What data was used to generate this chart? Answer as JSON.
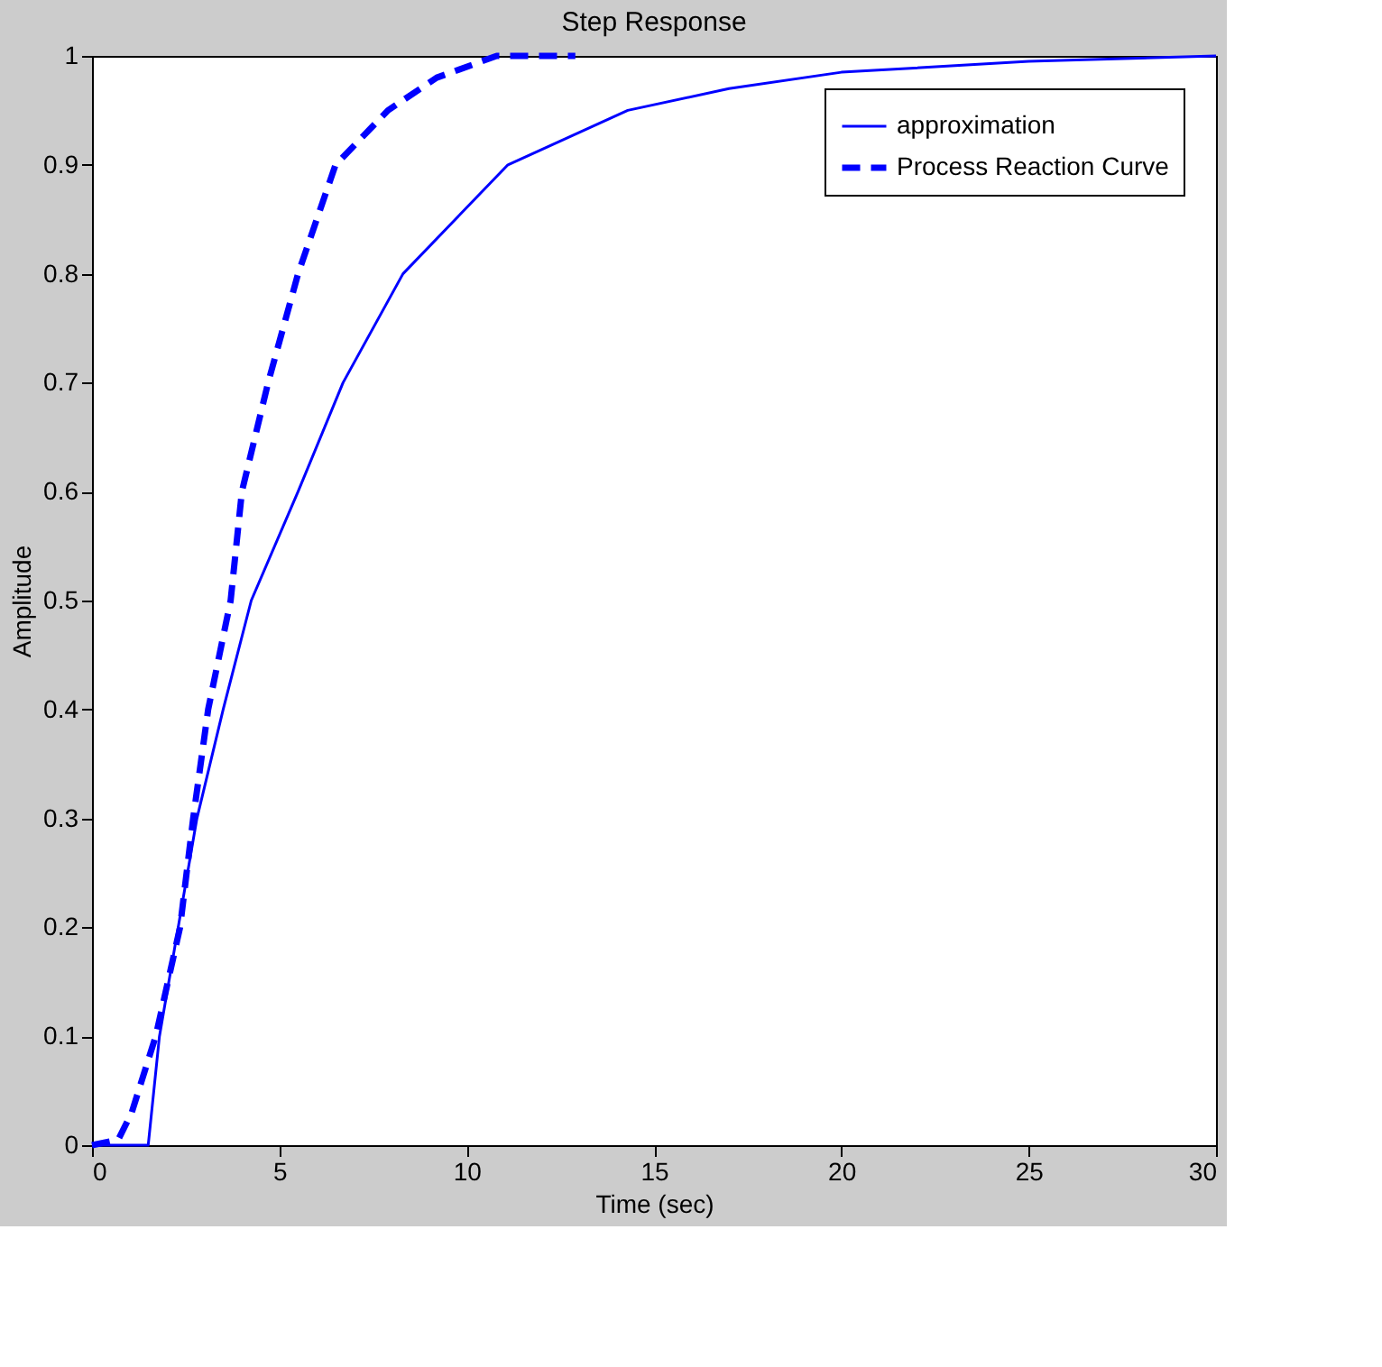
{
  "chart_data": {
    "type": "line",
    "title": "Step Response",
    "xlabel": "Time (sec)",
    "ylabel": "Amplitude",
    "xlim": [
      0,
      30
    ],
    "xticks": [
      0,
      5,
      10,
      15,
      20,
      25,
      30
    ],
    "ylim": [
      0,
      1
    ],
    "yticks": [
      0,
      0.1,
      0.2,
      0.3,
      0.4,
      0.5,
      0.6,
      0.7,
      0.8,
      0.9,
      1
    ],
    "grid": false,
    "legend": "top right",
    "series": [
      {
        "name": "approximation",
        "color": "#0000ff",
        "line_style": "solid",
        "x": [
          0,
          1.5,
          1.8,
          2.3,
          2.8,
          3.5,
          4.25,
          5.5,
          6.7,
          8.3,
          11.1,
          14.3,
          17,
          20,
          25,
          30
        ],
        "values": [
          0,
          0,
          0.1,
          0.2,
          0.3,
          0.4,
          0.5,
          0.6,
          0.7,
          0.8,
          0.9,
          0.95,
          0.97,
          0.985,
          0.995,
          1
        ]
      },
      {
        "name": "Process Reaction Curve",
        "color": "#0000ff",
        "line_style": "dashed",
        "x": [
          0,
          0.7,
          1.06,
          1.7,
          2.35,
          2.7,
          3.1,
          3.7,
          4.0,
          4.7,
          5.5,
          6.5,
          7.9,
          9.2,
          10.8,
          12.9
        ],
        "values": [
          0,
          0.005,
          0.03,
          0.1,
          0.2,
          0.3,
          0.4,
          0.5,
          0.6,
          0.7,
          0.8,
          0.9,
          0.95,
          0.98,
          1,
          1
        ]
      }
    ]
  }
}
